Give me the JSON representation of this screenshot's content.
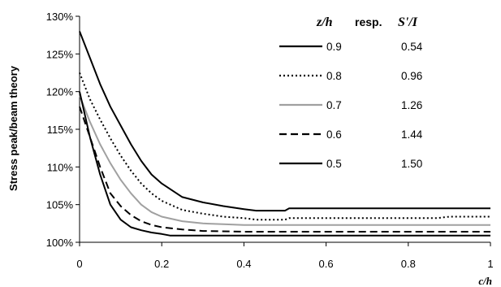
{
  "chart_data": {
    "type": "line",
    "title": "",
    "xlabel": "c/h",
    "ylabel": "Stress peak/beam theory",
    "xlim": [
      0,
      1
    ],
    "ylim": [
      100,
      130
    ],
    "x_ticks": [
      "0",
      "0.2",
      "0.4",
      "0.6",
      "0.8",
      "1"
    ],
    "y_ticks": [
      "100%",
      "105%",
      "110%",
      "115%",
      "120%",
      "125%",
      "130%"
    ],
    "grid": false,
    "legend": {
      "placement": "top-right",
      "header_zh": "z/h",
      "header_resp": "resp.",
      "header_si": "S'/I",
      "entries": [
        {
          "zh": "0.9",
          "si": "0.54",
          "style": "solid-black"
        },
        {
          "zh": "0.8",
          "si": "0.96",
          "style": "dotted-black"
        },
        {
          "zh": "0.7",
          "si": "1.26",
          "style": "solid-gray"
        },
        {
          "zh": "0.6",
          "si": "1.44",
          "style": "dashed-black"
        },
        {
          "zh": "0.5",
          "si": "1.50",
          "style": "solid-black"
        }
      ]
    },
    "series": [
      {
        "name": "0.9",
        "color": "#000000",
        "dash": "none",
        "x": [
          0,
          0.025,
          0.05,
          0.075,
          0.1,
          0.125,
          0.15,
          0.175,
          0.2,
          0.25,
          0.3,
          0.35,
          0.4,
          0.43,
          0.5,
          0.51,
          0.6,
          0.7,
          0.8,
          0.9,
          1.0
        ],
        "y": [
          128.0,
          124.5,
          121.0,
          118.0,
          115.5,
          113.0,
          110.8,
          109.0,
          107.8,
          106.0,
          105.3,
          104.8,
          104.4,
          104.2,
          104.2,
          104.5,
          104.5,
          104.5,
          104.5,
          104.5,
          104.5
        ]
      },
      {
        "name": "0.8",
        "color": "#000000",
        "dash": "2,3",
        "x": [
          0,
          0.025,
          0.05,
          0.075,
          0.1,
          0.125,
          0.15,
          0.175,
          0.2,
          0.25,
          0.3,
          0.35,
          0.4,
          0.43,
          0.5,
          0.51,
          0.6,
          0.7,
          0.8,
          0.87,
          0.9,
          1.0
        ],
        "y": [
          122.5,
          119.0,
          116.3,
          113.8,
          111.5,
          109.5,
          107.8,
          106.5,
          105.5,
          104.3,
          103.8,
          103.4,
          103.2,
          103.0,
          103.0,
          103.2,
          103.2,
          103.2,
          103.2,
          103.2,
          103.4,
          103.4
        ]
      },
      {
        "name": "0.7",
        "color": "#a0a0a0",
        "dash": "none",
        "x": [
          0,
          0.025,
          0.05,
          0.075,
          0.1,
          0.125,
          0.15,
          0.175,
          0.2,
          0.25,
          0.3,
          0.35,
          0.4,
          0.5,
          0.6,
          0.7,
          0.8,
          0.9,
          1.0
        ],
        "y": [
          119.5,
          116.0,
          113.0,
          110.5,
          108.3,
          106.5,
          105.0,
          104.0,
          103.4,
          102.8,
          102.5,
          102.4,
          102.3,
          102.3,
          102.3,
          102.3,
          102.3,
          102.3,
          102.3
        ]
      },
      {
        "name": "0.6",
        "color": "#000000",
        "dash": "9,5",
        "x": [
          0,
          0.025,
          0.05,
          0.075,
          0.1,
          0.125,
          0.15,
          0.175,
          0.2,
          0.25,
          0.3,
          0.4,
          0.5,
          0.6,
          0.7,
          0.8,
          0.9,
          1.0
        ],
        "y": [
          118.0,
          114.0,
          110.0,
          106.5,
          104.8,
          103.6,
          102.8,
          102.3,
          102.0,
          101.7,
          101.5,
          101.4,
          101.4,
          101.4,
          101.4,
          101.4,
          101.4,
          101.4
        ]
      },
      {
        "name": "0.5",
        "color": "#000000",
        "dash": "none",
        "x": [
          0,
          0.025,
          0.05,
          0.075,
          0.1,
          0.125,
          0.15,
          0.175,
          0.2,
          0.22,
          0.3,
          0.4,
          0.5,
          0.6,
          0.7,
          0.8,
          0.9,
          1.0
        ],
        "y": [
          120.0,
          114.0,
          109.0,
          105.0,
          103.0,
          102.0,
          101.6,
          101.3,
          101.1,
          100.9,
          100.9,
          100.9,
          100.9,
          100.9,
          100.9,
          100.9,
          100.9,
          100.9
        ]
      }
    ]
  }
}
